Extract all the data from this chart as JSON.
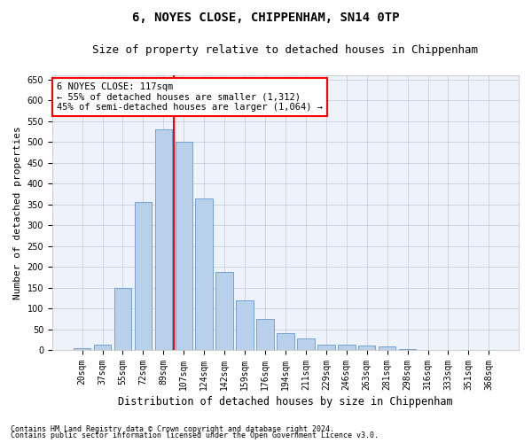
{
  "title": "6, NOYES CLOSE, CHIPPENHAM, SN14 0TP",
  "subtitle": "Size of property relative to detached houses in Chippenham",
  "xlabel": "Distribution of detached houses by size in Chippenham",
  "ylabel": "Number of detached properties",
  "categories": [
    "20sqm",
    "37sqm",
    "55sqm",
    "72sqm",
    "89sqm",
    "107sqm",
    "124sqm",
    "142sqm",
    "159sqm",
    "176sqm",
    "194sqm",
    "211sqm",
    "229sqm",
    "246sqm",
    "263sqm",
    "281sqm",
    "298sqm",
    "316sqm",
    "333sqm",
    "351sqm",
    "368sqm"
  ],
  "values": [
    5,
    12,
    150,
    355,
    530,
    500,
    365,
    187,
    120,
    75,
    40,
    27,
    12,
    13,
    10,
    8,
    3,
    1,
    0,
    0,
    0
  ],
  "bar_color": "#b8d0ea",
  "bar_edge_color": "#6699cc",
  "vline_x_index": 4,
  "vline_color": "red",
  "annotation_box_text": "6 NOYES CLOSE: 117sqm\n← 55% of detached houses are smaller (1,312)\n45% of semi-detached houses are larger (1,064) →",
  "annotation_box_edgecolor": "red",
  "annotation_box_facecolor": "white",
  "ylim": [
    0,
    660
  ],
  "yticks": [
    0,
    50,
    100,
    150,
    200,
    250,
    300,
    350,
    400,
    450,
    500,
    550,
    600,
    650
  ],
  "footnote1": "Contains HM Land Registry data © Crown copyright and database right 2024.",
  "footnote2": "Contains public sector information licensed under the Open Government Licence v3.0.",
  "bg_color": "#eef2fb",
  "grid_color": "#c5cde0",
  "title_fontsize": 10,
  "subtitle_fontsize": 9,
  "xlabel_fontsize": 8.5,
  "ylabel_fontsize": 8,
  "tick_fontsize": 7,
  "annotation_fontsize": 7.5,
  "footnote_fontsize": 6
}
